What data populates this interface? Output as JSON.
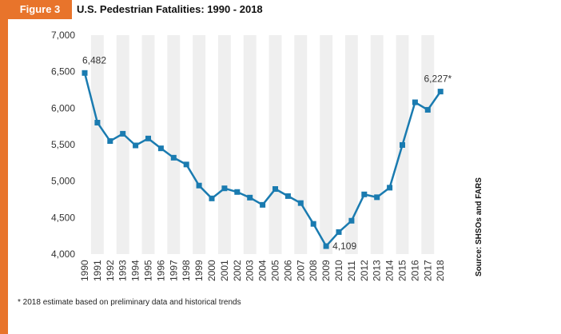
{
  "figure_label": "Figure 3",
  "title": "U.S. Pedestrian Fatalities: 1990 - 2018",
  "source": "Source: SHSOs and FARS",
  "footnote": "* 2018 estimate based on preliminary data and historical trends",
  "colors": {
    "accent": "#e8742b",
    "line": "#1a7bb0",
    "band": "#efefef"
  },
  "chart_data": {
    "type": "line",
    "title": "U.S. Pedestrian Fatalities: 1990 - 2018",
    "xlabel": "",
    "ylabel": "",
    "ylim": [
      4000,
      7000
    ],
    "yticks": [
      "4,000",
      "4,500",
      "5,000",
      "5,500",
      "6,000",
      "6,500",
      "7,000"
    ],
    "grid": "alternating-year-bands",
    "categories": [
      "1990",
      "1991",
      "1992",
      "1993",
      "1994",
      "1995",
      "1996",
      "1997",
      "1998",
      "1999",
      "2000",
      "2001",
      "2002",
      "2003",
      "2004",
      "2005",
      "2006",
      "2007",
      "2008",
      "2009",
      "2010",
      "2011",
      "2012",
      "2013",
      "2014",
      "2015",
      "2016",
      "2017",
      "2018"
    ],
    "values": [
      6482,
      5801,
      5549,
      5649,
      5489,
      5584,
      5449,
      5321,
      5228,
      4939,
      4763,
      4901,
      4851,
      4774,
      4675,
      4892,
      4795,
      4699,
      4414,
      4109,
      4302,
      4457,
      4818,
      4779,
      4910,
      5495,
      6080,
      5977,
      6227
    ],
    "annotations": [
      {
        "index": 0,
        "text": "6,482"
      },
      {
        "index": 19,
        "text": "4,109"
      },
      {
        "index": 28,
        "text": "6,227*"
      }
    ]
  }
}
